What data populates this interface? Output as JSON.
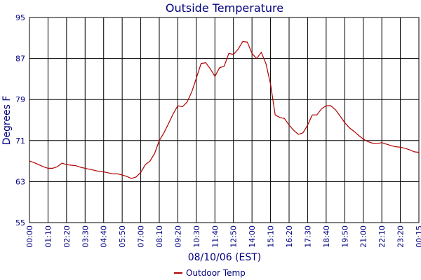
{
  "chart_data": {
    "type": "line",
    "title": "Outside Temperature",
    "xlabel": "08/10/06 (EST)",
    "ylabel": "Degrees F",
    "categories": [
      "00:00",
      null,
      null,
      null,
      "01:10",
      null,
      null,
      null,
      "02:20",
      null,
      null,
      null,
      "03:30",
      null,
      null,
      null,
      "04:40",
      null,
      null,
      null,
      "05:50",
      null,
      null,
      null,
      "07:00",
      null,
      null,
      null,
      "08:10",
      null,
      null,
      null,
      "09:20",
      null,
      null,
      null,
      "10:30",
      null,
      null,
      null,
      "11:40",
      null,
      null,
      null,
      "12:50",
      null,
      null,
      null,
      "14:00",
      null,
      null,
      null,
      "15:10",
      null,
      null,
      null,
      "16:20",
      null,
      null,
      null,
      "17:30",
      null,
      null,
      null,
      "18:40",
      null,
      null,
      null,
      "19:50",
      null,
      null,
      null,
      "21:00",
      null,
      null,
      null,
      "22:10",
      null,
      null,
      null,
      "23:20",
      null,
      null,
      null,
      "00:15"
    ],
    "series": [
      {
        "name": "Outdoor Temp",
        "color": "#b00000",
        "values": [
          67.0,
          66.7,
          66.3,
          65.9,
          65.6,
          65.6,
          65.9,
          66.6,
          66.3,
          66.2,
          66.1,
          65.8,
          65.6,
          65.4,
          65.2,
          65.0,
          64.9,
          64.7,
          64.5,
          64.5,
          64.3,
          64.0,
          63.6,
          63.9,
          64.8,
          66.3,
          67.0,
          68.5,
          71.0,
          72.5,
          74.3,
          76.2,
          77.8,
          77.6,
          78.5,
          80.5,
          83.2,
          86.0,
          86.2,
          85.0,
          83.5,
          85.2,
          85.5,
          88.0,
          87.8,
          88.8,
          90.3,
          90.2,
          88.0,
          87.0,
          88.2,
          86.0,
          82.0,
          76.0,
          75.5,
          75.3,
          74.0,
          73.0,
          72.2,
          72.5,
          74.0,
          76.0,
          76.0,
          77.2,
          77.8,
          77.8,
          77.0,
          75.8,
          74.5,
          73.5,
          72.8,
          72.0,
          71.3,
          70.8,
          70.5,
          70.4,
          70.6,
          70.3,
          70.0,
          69.8,
          69.7,
          69.5,
          69.2,
          68.8,
          68.7
        ]
      }
    ],
    "ylim": [
      55,
      95
    ],
    "yticks": [
      55,
      63,
      71,
      79,
      87,
      95
    ],
    "grid": true,
    "legend": "bottom"
  }
}
